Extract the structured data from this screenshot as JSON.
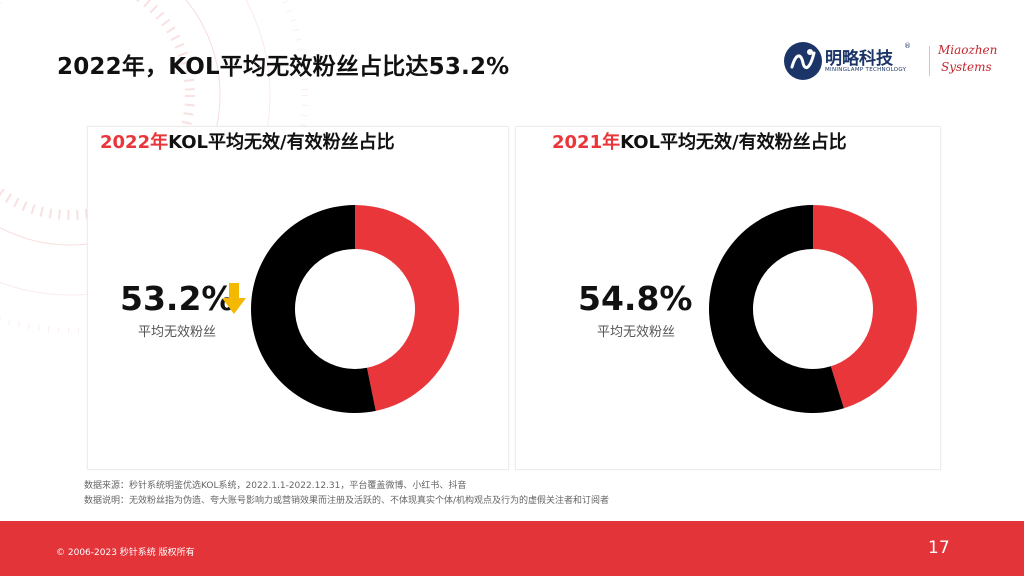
{
  "title": "2022年，KOL平均无效粉丝占比达53.2%",
  "logo": {
    "cn": "明略科技",
    "reg": "®",
    "en": "MININGLAMP TECHNOLOGY",
    "mz_line1": "Miaozhen",
    "mz_line2": "Systems"
  },
  "charts": [
    {
      "title_year": "2022年",
      "title_rest": "KOL平均无效/有效粉丝占比",
      "big_value": "53.2%",
      "label": "平均无效粉丝",
      "trend": "down"
    },
    {
      "title_year": "2021年",
      "title_rest": "KOL平均无效/有效粉丝占比",
      "big_value": "54.8%",
      "label": "平均无效粉丝"
    }
  ],
  "chart_data": [
    {
      "type": "pie",
      "title": "2022年KOL平均无效/有效粉丝占比",
      "categories": [
        "平均无效粉丝",
        ""
      ],
      "values": [
        53.2,
        46.8
      ],
      "colors": [
        "#000000",
        "#e8363a"
      ]
    },
    {
      "type": "pie",
      "title": "2021年KOL平均无效/有效粉丝占比",
      "categories": [
        "平均无效粉丝",
        ""
      ],
      "values": [
        54.8,
        45.2
      ],
      "colors": [
        "#000000",
        "#e8363a"
      ]
    }
  ],
  "notes": {
    "source": "数据来源：秒针系统明鉴优选KOL系统，2022.1.1-2022.12.31，平台覆盖微博、小红书、抖音",
    "explain": "数据说明：无效粉丝指为伪造、夸大账号影响力或营销效果而注册及活跃的、不体现真实个体/机构观点及行为的虚假关注者和订阅者"
  },
  "footer": {
    "copyright": "© 2006-2023 秒针系统 版权所有",
    "page": "17"
  },
  "colors": {
    "accent": "#e8363a",
    "ineffective": "#000000",
    "arrow": "#f5b800"
  },
  "icons": {
    "trend": "arrow-down-icon"
  }
}
